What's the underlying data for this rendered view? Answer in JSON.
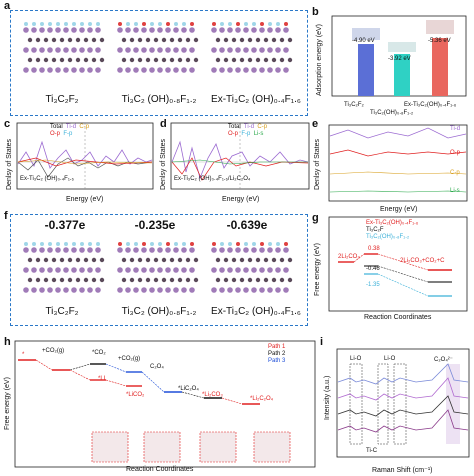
{
  "panels": {
    "a": {
      "label": "a",
      "structures": [
        "Ti$_3$C$_2$F$_2$",
        "Ti$_3$C$_2$ (OH)$_{0.8}$F$_{1.2}$",
        "Ex-Ti$_3$C$_2$ (OH)$_{0.4}$F$_{1.6}$"
      ],
      "captions": [
        "Ti₃C₂F₂",
        "Ti₃C₂ (OH)₀.₈F₁.₂",
        "Ex-Ti₃C₂ (OH)₀.₄F₁.₆"
      ]
    },
    "b": {
      "label": "b",
      "ylabel": "Adsorption energy (eV)",
      "bar_labels": [
        "-4.90 eV",
        "-3.92 eV",
        "-5.36 eV"
      ],
      "xcats": [
        "Ti₃C₂F₂",
        "Ti₃C₂(OH)₀.₈F₁.₂",
        "Ex-Ti₃C₂(OH)₀.₄F₁.₆"
      ]
    },
    "c": {
      "label": "c",
      "ylabel": "Denlsy of States",
      "xlabel": "Energy (eV)",
      "legend": [
        "Total",
        "Ti-d",
        "C-p",
        "O-p",
        "F-p"
      ],
      "annot": "Ex-Ti₃C₂ (OH)₀.₄F₁.₆",
      "xticks": [
        "-3",
        "-2",
        "-1",
        "0",
        "1",
        "2",
        "3"
      ]
    },
    "d": {
      "label": "d",
      "ylabel": "Denlsy of States",
      "xlabel": "Energy (eV)",
      "legend": [
        "Total",
        "Ti-d",
        "C-p",
        "O-p",
        "F-p",
        "Li-s"
      ],
      "annot": "Ex-Ti₃C₂ (OH)₀.₄F₁.₆/Li₂C₂O₄",
      "xticks": [
        "-3",
        "-2",
        "-1",
        "0",
        "1",
        "2",
        "3"
      ]
    },
    "e": {
      "label": "e",
      "ylabel": "Denlsy of States",
      "xlabel": "Energy (eV)",
      "tracks": [
        "Ti-d",
        "O-p",
        "C-p",
        "Li-s"
      ],
      "xticks": [
        "-2",
        "0",
        "2"
      ]
    },
    "f": {
      "label": "f",
      "values": [
        "-0.377e",
        "-0.235e",
        "-0.639e"
      ],
      "captions": [
        "Ti₃C₂F₂",
        "Ti₃C₂ (OH)₀.₈F₁.₂",
        "Ex-Ti₃C₂ (OH)₀.₄F₁.₆"
      ]
    },
    "g": {
      "label": "g",
      "ylabel": "Free energy (eV)",
      "xlabel": "Reaction Coordinates",
      "legend": [
        "Ex-Ti₃C₂(OH)₀.₄F₁.₆",
        "Ti₃C₂F",
        "Ti₃C₂(OH)₀.₈F₁.₂"
      ],
      "left_label": "2Li₂CO₃",
      "right_label": "2Li₂CO₃+CO₂+C",
      "step_values": [
        "0.38",
        "-0.46",
        "-1.35"
      ]
    },
    "h": {
      "label": "h",
      "ylabel": "Free energy (eV)",
      "xlabel": "Reaction Coordinates",
      "legend": [
        "Path 1",
        "Path 2",
        "Path 3"
      ],
      "species": [
        "*",
        "+CO₂(g)",
        "*CO₂",
        "+CO₂(g)",
        "C₂O₄",
        "*LI",
        "*LI",
        "*LiCO₂",
        "+Li⁺+e⁻",
        "*LiC₂O₄",
        "*Li₂CO₃",
        "+Li⁺+e⁻",
        "*Li₂C₂O₄",
        "+CO₂(g)"
      ]
    },
    "i": {
      "label": "i",
      "ylabel": "Intensity (a.u.)",
      "xlabel": "Raman Shift (cm⁻¹)",
      "annotations": [
        "Li-O",
        "Li-O",
        "C₂O₄²⁻",
        "Ti-C"
      ],
      "xticks": [
        "200",
        "400",
        "600",
        "800"
      ]
    }
  },
  "colors": {
    "box": "#2a78c8",
    "path1": "#e02020",
    "path2": "#111111",
    "path3": "#1f4fd8",
    "bar1": "#5b6fd6",
    "bar2": "#2fd1c4",
    "bar3": "#e9675f"
  }
}
